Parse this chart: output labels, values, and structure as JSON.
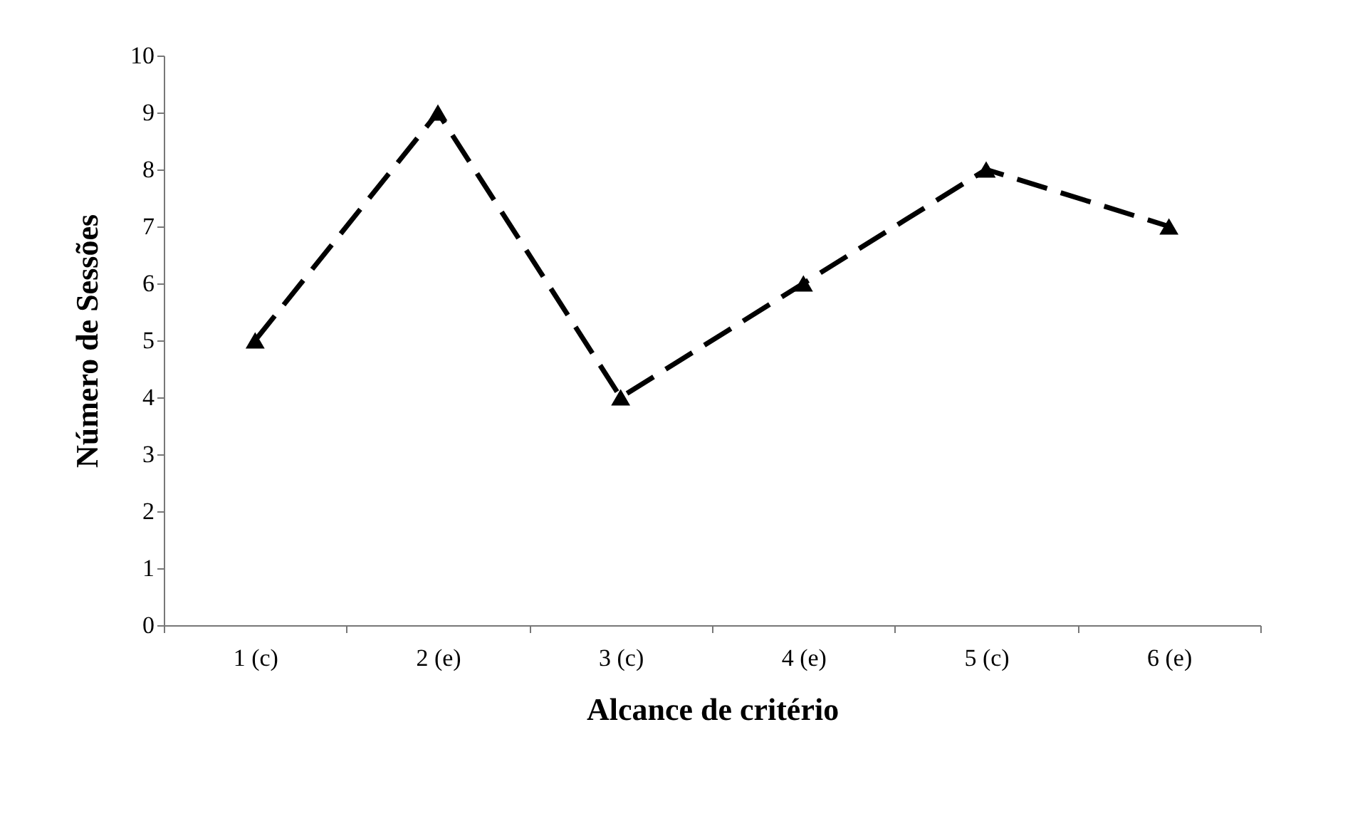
{
  "chart_data": {
    "type": "line",
    "xlabel": "Alcance de critério",
    "ylabel": "Número de Sessões",
    "categories": [
      "1 (c)",
      "2 (e)",
      "3 (c)",
      "4 (e)",
      "5 (c)",
      "6 (e)"
    ],
    "series": [
      {
        "color": "#000000",
        "values": [
          5,
          9,
          4,
          6,
          8,
          7
        ]
      }
    ],
    "ylim": [
      0,
      10
    ],
    "yticks": [
      0,
      1,
      2,
      3,
      4,
      5,
      6,
      7,
      8,
      9,
      10
    ],
    "grid": false,
    "marker": "triangle",
    "line_style": "dashed"
  }
}
